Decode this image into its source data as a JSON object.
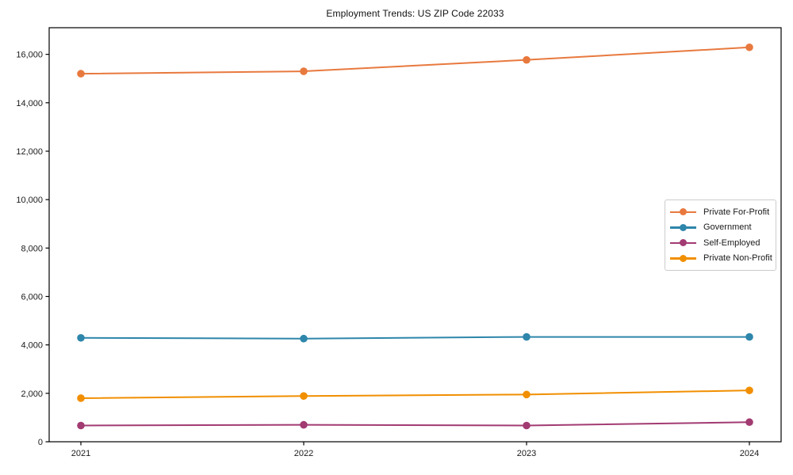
{
  "title": "Employment Trends: US ZIP Code 22033",
  "chart_data": {
    "type": "line",
    "title": "Employment Trends: US ZIP Code 22033",
    "xlabel": "",
    "ylabel": "",
    "categories": [
      "2021",
      "2022",
      "2023",
      "2024"
    ],
    "series": [
      {
        "name": "Private For-Profit",
        "color": "#E8793E",
        "values": [
          15200,
          15300,
          15770,
          16290
        ]
      },
      {
        "name": "Government",
        "color": "#2E86AB",
        "values": [
          4290,
          4260,
          4330,
          4330
        ]
      },
      {
        "name": "Self-Employed",
        "color": "#A23B72",
        "values": [
          670,
          700,
          670,
          810
        ]
      },
      {
        "name": "Private Non-Profit",
        "color": "#F18F01",
        "values": [
          1800,
          1890,
          1950,
          2120
        ]
      }
    ],
    "ylim": [
      0,
      17100
    ],
    "yticks": [
      0,
      2000,
      4000,
      6000,
      8000,
      10000,
      12000,
      14000,
      16000
    ],
    "ytick_labels": [
      "0",
      "2,000",
      "4,000",
      "6,000",
      "8,000",
      "10,000",
      "12,000",
      "14,000",
      "16,000"
    ],
    "grid": false,
    "legend_position": "center right",
    "marker": "circle",
    "axis_color": "#000000",
    "text_color": "#1a1a1a"
  }
}
